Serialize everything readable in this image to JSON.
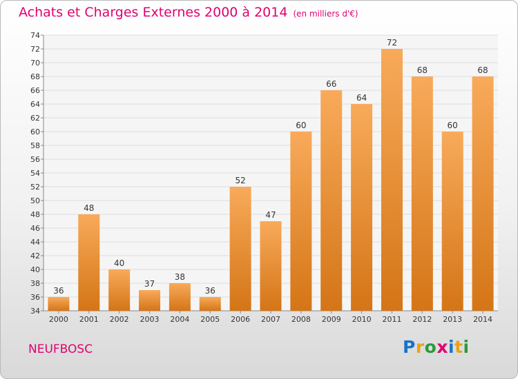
{
  "title": "Achats et Charges Externes 2000 à 2014",
  "unit": "(en milliers d'€)",
  "commune": "NEUFBOSC",
  "logo": {
    "letters": [
      "P",
      "r",
      "o",
      "x",
      "i",
      "t",
      "i"
    ],
    "colors": [
      "#1a73c7",
      "#e8a316",
      "#2a9a3a",
      "#e0006f",
      "#1a73c7",
      "#e8a316",
      "#2a9a3a"
    ]
  },
  "colors": {
    "accent": "#e0006f",
    "bar_top": "#f8aa5a",
    "bar_bottom": "#d47516"
  },
  "chart_data": {
    "type": "bar",
    "categories": [
      "2000",
      "2001",
      "2002",
      "2003",
      "2004",
      "2005",
      "2006",
      "2007",
      "2008",
      "2009",
      "2010",
      "2011",
      "2012",
      "2013",
      "2014"
    ],
    "values": [
      36,
      48,
      40,
      37,
      38,
      36,
      52,
      47,
      60,
      66,
      64,
      72,
      68,
      60,
      68
    ],
    "data_labels": [
      "36",
      "48",
      "40",
      "37",
      "38",
      "36",
      "52",
      "47",
      "60",
      "66",
      "64",
      "72",
      "68",
      "60",
      "68"
    ],
    "title": "Achats et Charges Externes 2000 à 2014",
    "ylim": [
      34,
      74
    ],
    "yticks": [
      34,
      36,
      38,
      40,
      42,
      44,
      46,
      48,
      50,
      52,
      54,
      56,
      58,
      60,
      62,
      64,
      66,
      68,
      70,
      72,
      74
    ],
    "grid": true
  }
}
